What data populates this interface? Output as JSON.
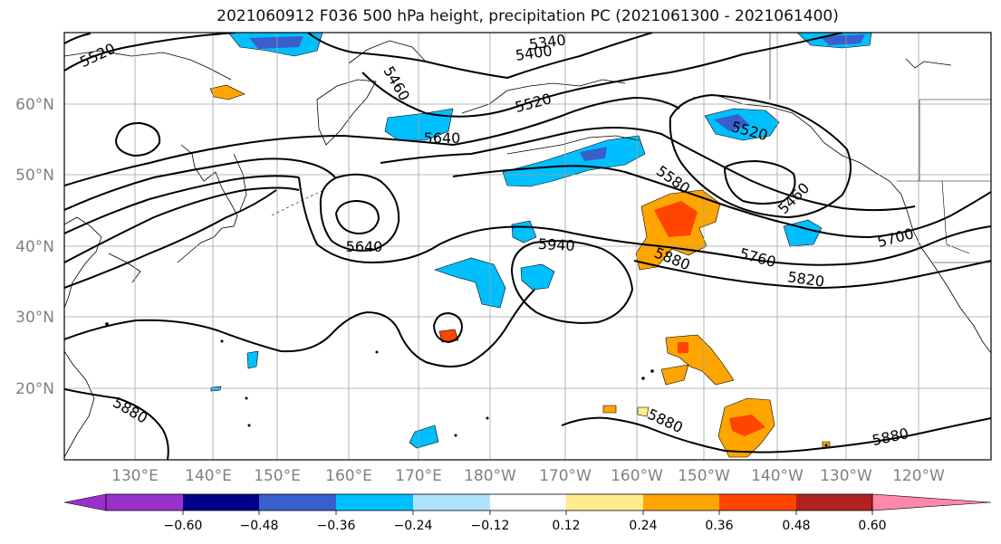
{
  "title": "2021060912 F036 500 hPa height, precipitation PC (2021061300 - 2021061400)",
  "latitude_labels": [
    "60°N",
    "50°N",
    "40°N",
    "30°N",
    "20°N"
  ],
  "longitude_labels": [
    "130°E",
    "140°E",
    "150°E",
    "160°E",
    "170°E",
    "180°W",
    "170°W",
    "160°W",
    "150°W",
    "140°W",
    "130°W",
    "120°W"
  ],
  "contour_labels": [
    "5520",
    "5340",
    "5400",
    "5460",
    "5640",
    "5520",
    "5520",
    "5580",
    "5460",
    "5640",
    "5940",
    "5880",
    "5760",
    "5700",
    "5820",
    "5880",
    "5880",
    "5880"
  ],
  "colorbar": {
    "ticks": [
      "−0.60",
      "−0.48",
      "−0.36",
      "−0.24",
      "−0.12",
      "0.12",
      "0.24",
      "0.36",
      "0.48",
      "0.60"
    ],
    "colors": [
      "#9932cc",
      "#00008b",
      "#3a5fcd",
      "#00bfff",
      "#b0e2ff",
      "#ffffff",
      "#ffec8b",
      "#ffa500",
      "#ff4500",
      "#b22222",
      "#ff88aa"
    ]
  }
}
